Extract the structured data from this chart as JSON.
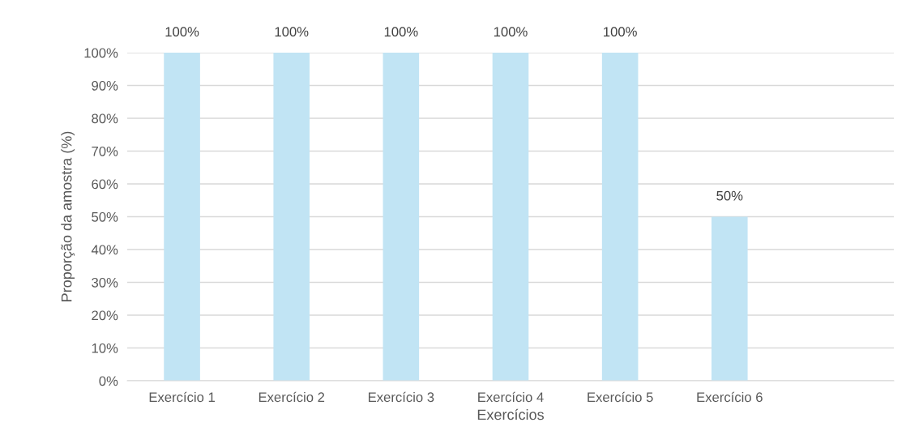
{
  "chart_data": {
    "type": "bar",
    "xlabel": "Exercícios",
    "ylabel": "Proporção da amostra (%)",
    "categories": [
      "Exercício 1",
      "Exercício 2",
      "Exercício 3",
      "Exercício 4",
      "Exercício 5",
      "Exercício 6",
      null
    ],
    "values": [
      100,
      100,
      100,
      100,
      100,
      50,
      null
    ],
    "value_labels": [
      "100%",
      "100%",
      "100%",
      "100%",
      "100%",
      "50%",
      null
    ],
    "color": "#c1e4f4",
    "ylim": [
      0,
      100
    ],
    "yticks": [
      {
        "value": 0,
        "label": "0%"
      },
      {
        "value": 10,
        "label": "10%"
      },
      {
        "value": 20,
        "label": "20%"
      },
      {
        "value": 30,
        "label": "30%"
      },
      {
        "value": 40,
        "label": "40%"
      },
      {
        "value": 50,
        "label": "50%"
      },
      {
        "value": 60,
        "label": "60%"
      },
      {
        "value": 70,
        "label": "70%"
      },
      {
        "value": 80,
        "label": "80%"
      },
      {
        "value": 90,
        "label": "90%"
      },
      {
        "value": 100,
        "label": "100%"
      }
    ],
    "grid": "y"
  }
}
